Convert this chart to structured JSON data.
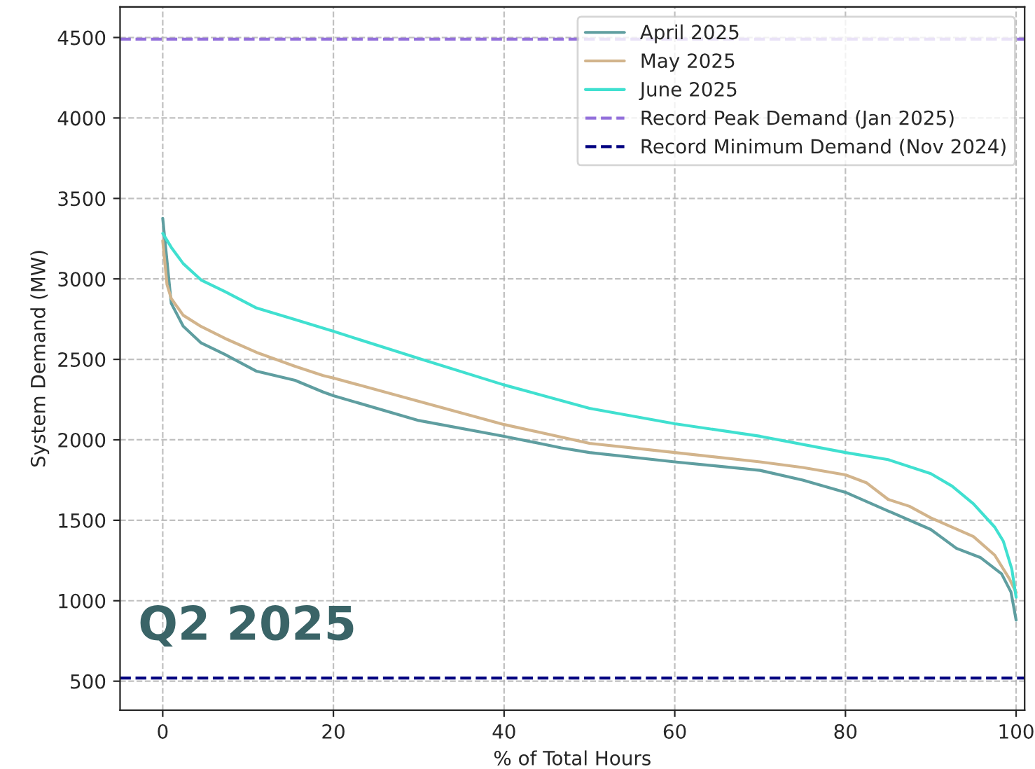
{
  "chart_data": {
    "type": "line",
    "xlabel": "% of Total Hours",
    "ylabel": "System Demand (MW)",
    "annotations": [
      "Q2 2025"
    ],
    "series": [
      {
        "name": "April 2025",
        "color": "#5f9ea0",
        "x": [
          0,
          1,
          2.4,
          4.5,
          7.3,
          11,
          15.5,
          18.8,
          20,
          30,
          40,
          46.7,
          50,
          60,
          70,
          75,
          80,
          85,
          90,
          93,
          95.8,
          98.3,
          99.4,
          100
        ],
        "values": [
          3376,
          2848,
          2706,
          2602,
          2530,
          2426,
          2370,
          2297,
          2274,
          2120,
          2022,
          1950,
          1921,
          1863,
          1810,
          1750,
          1674,
          1558,
          1443,
          1326,
          1269,
          1167,
          1054,
          880
        ]
      },
      {
        "name": "May 2025",
        "color": "#d2b48c",
        "x": [
          0,
          0.5,
          1,
          2.4,
          4.5,
          7.3,
          11,
          15.5,
          18.8,
          20,
          30,
          40,
          50,
          60,
          70,
          75,
          80,
          82.5,
          85,
          87.5,
          90,
          95,
          97.5,
          99.2,
          100
        ],
        "values": [
          3237,
          2965,
          2878,
          2774,
          2704,
          2630,
          2543,
          2457,
          2399,
          2384,
          2239,
          2095,
          1978,
          1921,
          1863,
          1828,
          1782,
          1732,
          1630,
          1587,
          1515,
          1399,
          1283,
          1138,
          1051
        ]
      },
      {
        "name": "June 2025",
        "color": "#40e0d0",
        "x": [
          0,
          1,
          2.4,
          4.5,
          7.3,
          11,
          15.5,
          20,
          30,
          40,
          50,
          60,
          70,
          80,
          85,
          90,
          92.5,
          95,
          97.5,
          98.5,
          99.5,
          100
        ],
        "values": [
          3283,
          3196,
          3095,
          2993,
          2921,
          2819,
          2747,
          2674,
          2506,
          2341,
          2196,
          2100,
          2022,
          1921,
          1877,
          1790,
          1712,
          1602,
          1457,
          1370,
          1196,
          1022
        ]
      }
    ],
    "ref_lines": [
      {
        "axis": "y",
        "value": 4490,
        "label": "Record Peak Demand (Jan 2025)",
        "color": "#9370db",
        "line_style": "dashed"
      },
      {
        "axis": "y",
        "value": 520,
        "label": "Record Minimum Demand (Nov 2024)",
        "color": "#000080",
        "line_style": "dashed"
      }
    ],
    "xlim": [
      -5,
      101
    ],
    "ylim": [
      320,
      4690
    ],
    "xticks": [
      0,
      20,
      40,
      60,
      80,
      100
    ],
    "yticks": [
      500,
      1000,
      1500,
      2000,
      2500,
      3000,
      3500,
      4000,
      4500
    ],
    "grid": true,
    "legend": "top right",
    "line_style": "solid",
    "marker": "none"
  }
}
